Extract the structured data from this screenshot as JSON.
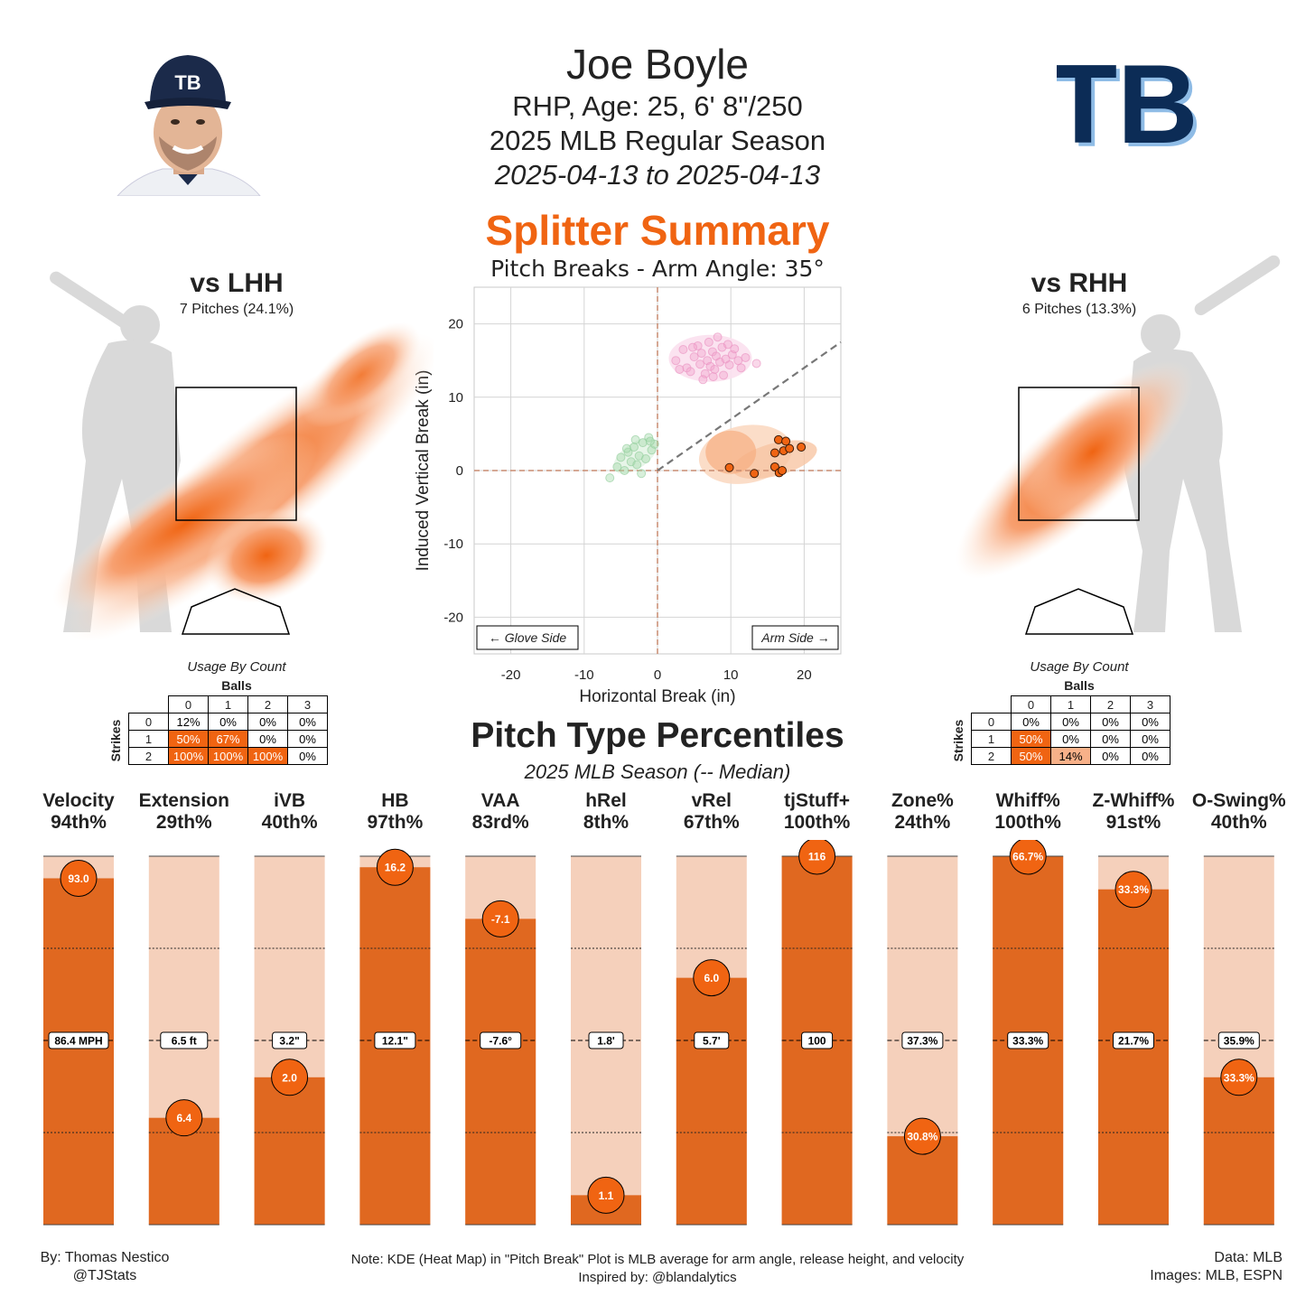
{
  "header": {
    "name": "Joe Boyle",
    "bio": "RHP, Age: 25, 6' 8\"/250",
    "season": "2025 MLB Regular Season",
    "dates": "2025-04-13 to 2025-04-13",
    "summary_title": "Splitter Summary",
    "team_logo_text": "TB",
    "cap_logo_text": "TB"
  },
  "colors": {
    "accent": "#f06412",
    "bar_fill": "#e06820",
    "bar_bg": "#f5d0bb",
    "fastball_pink": "#f2a6cf",
    "green": "#a8dcb0"
  },
  "vs_lhh": {
    "title": "vs LHH",
    "subtitle": "7 Pitches (24.1%)"
  },
  "vs_rhh": {
    "title": "vs RHH",
    "subtitle": "6 Pitches (13.3%)"
  },
  "usage_lhh": {
    "caption": "Usage By Count",
    "balls_label": "Balls",
    "strikes_label": "Strikes",
    "ball_headers": [
      "0",
      "1",
      "2",
      "3"
    ],
    "rows": [
      {
        "strike": "0",
        "cells": [
          "12%",
          "0%",
          "0%",
          "0%"
        ]
      },
      {
        "strike": "1",
        "cells": [
          "50%",
          "67%",
          "0%",
          "0%"
        ]
      },
      {
        "strike": "2",
        "cells": [
          "100%",
          "100%",
          "100%",
          "0%"
        ]
      }
    ]
  },
  "usage_rhh": {
    "caption": "Usage By Count",
    "balls_label": "Balls",
    "strikes_label": "Strikes",
    "ball_headers": [
      "0",
      "1",
      "2",
      "3"
    ],
    "rows": [
      {
        "strike": "0",
        "cells": [
          "0%",
          "0%",
          "0%",
          "0%"
        ]
      },
      {
        "strike": "1",
        "cells": [
          "50%",
          "0%",
          "0%",
          "0%"
        ]
      },
      {
        "strike": "2",
        "cells": [
          "50%",
          "14%",
          "0%",
          "0%"
        ]
      }
    ]
  },
  "percentiles": {
    "title": "Pitch Type Percentiles",
    "subtitle": "2025 MLB Season (-- Median)"
  },
  "footer": {
    "left_line1": "By: Thomas Nestico",
    "left_line2": "@TJStats",
    "center_line1": "Note: KDE (Heat Map) in \"Pitch Break\" Plot is MLB average for arm angle, release height, and velocity",
    "center_line2": "Inspired by: @blandalytics",
    "right_line1": "Data: MLB",
    "right_line2": "Images: MLB, ESPN"
  },
  "chart_data": [
    {
      "type": "scatter",
      "title": "Pitch Breaks - Arm Angle: 35°",
      "xlabel": "Horizontal Break (in)",
      "ylabel": "Induced Vertical Break (in)",
      "xlim": [
        -25,
        25
      ],
      "ylim": [
        -25,
        25
      ],
      "xticks": [
        -20,
        -10,
        0,
        10,
        20
      ],
      "yticks": [
        -20,
        -10,
        0,
        10,
        20
      ],
      "grid": true,
      "left_annotation": "← Glove Side",
      "right_annotation": "Arm Side →",
      "arm_angle_deg": 35,
      "splitter_points": [
        {
          "x": 9.8,
          "y": 0.4
        },
        {
          "x": 13.2,
          "y": -0.4
        },
        {
          "x": 16.0,
          "y": 2.4
        },
        {
          "x": 16.5,
          "y": 4.2
        },
        {
          "x": 17.5,
          "y": 4.0
        },
        {
          "x": 17.2,
          "y": 2.7
        },
        {
          "x": 18.0,
          "y": 3.0
        },
        {
          "x": 16.0,
          "y": 0.5
        },
        {
          "x": 16.6,
          "y": -0.3
        },
        {
          "x": 17.0,
          "y": 0.0
        },
        {
          "x": 19.6,
          "y": 3.2
        }
      ],
      "fastball_points": [
        {
          "x": 2.5,
          "y": 15.0
        },
        {
          "x": 3.5,
          "y": 16.5
        },
        {
          "x": 4.0,
          "y": 14.0
        },
        {
          "x": 4.5,
          "y": 13.5
        },
        {
          "x": 5.0,
          "y": 15.5
        },
        {
          "x": 5.5,
          "y": 17.0
        },
        {
          "x": 5.8,
          "y": 14.5
        },
        {
          "x": 6.0,
          "y": 16.0
        },
        {
          "x": 6.5,
          "y": 13.2
        },
        {
          "x": 6.8,
          "y": 15.0
        },
        {
          "x": 7.0,
          "y": 17.5
        },
        {
          "x": 7.2,
          "y": 14.2
        },
        {
          "x": 7.5,
          "y": 16.2
        },
        {
          "x": 7.8,
          "y": 13.8
        },
        {
          "x": 8.0,
          "y": 15.6
        },
        {
          "x": 8.2,
          "y": 18.2
        },
        {
          "x": 8.5,
          "y": 14.8
        },
        {
          "x": 8.8,
          "y": 16.8
        },
        {
          "x": 9.0,
          "y": 13.0
        },
        {
          "x": 9.3,
          "y": 15.2
        },
        {
          "x": 9.6,
          "y": 17.2
        },
        {
          "x": 9.8,
          "y": 14.4
        },
        {
          "x": 10.2,
          "y": 15.8
        },
        {
          "x": 10.5,
          "y": 16.6
        },
        {
          "x": 11.0,
          "y": 15.0
        },
        {
          "x": 11.4,
          "y": 14.0
        },
        {
          "x": 12.0,
          "y": 15.4
        },
        {
          "x": 6.2,
          "y": 12.4
        },
        {
          "x": 4.8,
          "y": 16.8
        },
        {
          "x": 13.5,
          "y": 14.6
        },
        {
          "x": 3.0,
          "y": 13.8
        },
        {
          "x": 7.6,
          "y": 12.8
        }
      ],
      "green_points": [
        {
          "x": -6.5,
          "y": -1.0
        },
        {
          "x": -5.5,
          "y": 0.5
        },
        {
          "x": -5.0,
          "y": 1.8
        },
        {
          "x": -4.5,
          "y": 0.0
        },
        {
          "x": -4.0,
          "y": 2.5
        },
        {
          "x": -3.6,
          "y": 1.2
        },
        {
          "x": -3.2,
          "y": 3.2
        },
        {
          "x": -2.8,
          "y": 0.8
        },
        {
          "x": -2.5,
          "y": 2.0
        },
        {
          "x": -2.0,
          "y": 3.8
        },
        {
          "x": -1.6,
          "y": 1.6
        },
        {
          "x": -1.2,
          "y": 4.5
        },
        {
          "x": -0.8,
          "y": 2.8
        },
        {
          "x": -0.4,
          "y": 3.6
        },
        {
          "x": -1.0,
          "y": 4.0
        },
        {
          "x": -3.0,
          "y": 4.2
        },
        {
          "x": -4.2,
          "y": 3.0
        },
        {
          "x": -2.2,
          "y": -0.4
        }
      ]
    },
    {
      "type": "bar",
      "title": "Pitch Type Percentiles",
      "ylim": [
        0,
        100
      ],
      "metrics": [
        {
          "name": "Velocity",
          "percentile_label": "94th%",
          "percentile": 94,
          "value": "93.0",
          "median": "86.4 MPH"
        },
        {
          "name": "Extension",
          "percentile_label": "29th%",
          "percentile": 29,
          "value": "6.4",
          "median": "6.5 ft"
        },
        {
          "name": "iVB",
          "percentile_label": "40th%",
          "percentile": 40,
          "value": "2.0",
          "median": "3.2\""
        },
        {
          "name": "HB",
          "percentile_label": "97th%",
          "percentile": 97,
          "value": "16.2",
          "median": "12.1\""
        },
        {
          "name": "VAA",
          "percentile_label": "83rd%",
          "percentile": 83,
          "value": "-7.1",
          "median": "-7.6°"
        },
        {
          "name": "hRel",
          "percentile_label": "8th%",
          "percentile": 8,
          "value": "1.1",
          "median": "1.8'"
        },
        {
          "name": "vRel",
          "percentile_label": "67th%",
          "percentile": 67,
          "value": "6.0",
          "median": "5.7'"
        },
        {
          "name": "tjStuff+",
          "percentile_label": "100th%",
          "percentile": 100,
          "value": "116",
          "median": "100"
        },
        {
          "name": "Zone%",
          "percentile_label": "24th%",
          "percentile": 24,
          "value": "30.8%",
          "median": "37.3%"
        },
        {
          "name": "Whiff%",
          "percentile_label": "100th%",
          "percentile": 100,
          "value": "66.7%",
          "median": "33.3%"
        },
        {
          "name": "Z-Whiff%",
          "percentile_label": "91st%",
          "percentile": 91,
          "value": "33.3%",
          "median": "21.7%"
        },
        {
          "name": "O-Swing%",
          "percentile_label": "40th%",
          "percentile": 40,
          "value": "33.3%",
          "median": "35.9%"
        }
      ]
    }
  ]
}
